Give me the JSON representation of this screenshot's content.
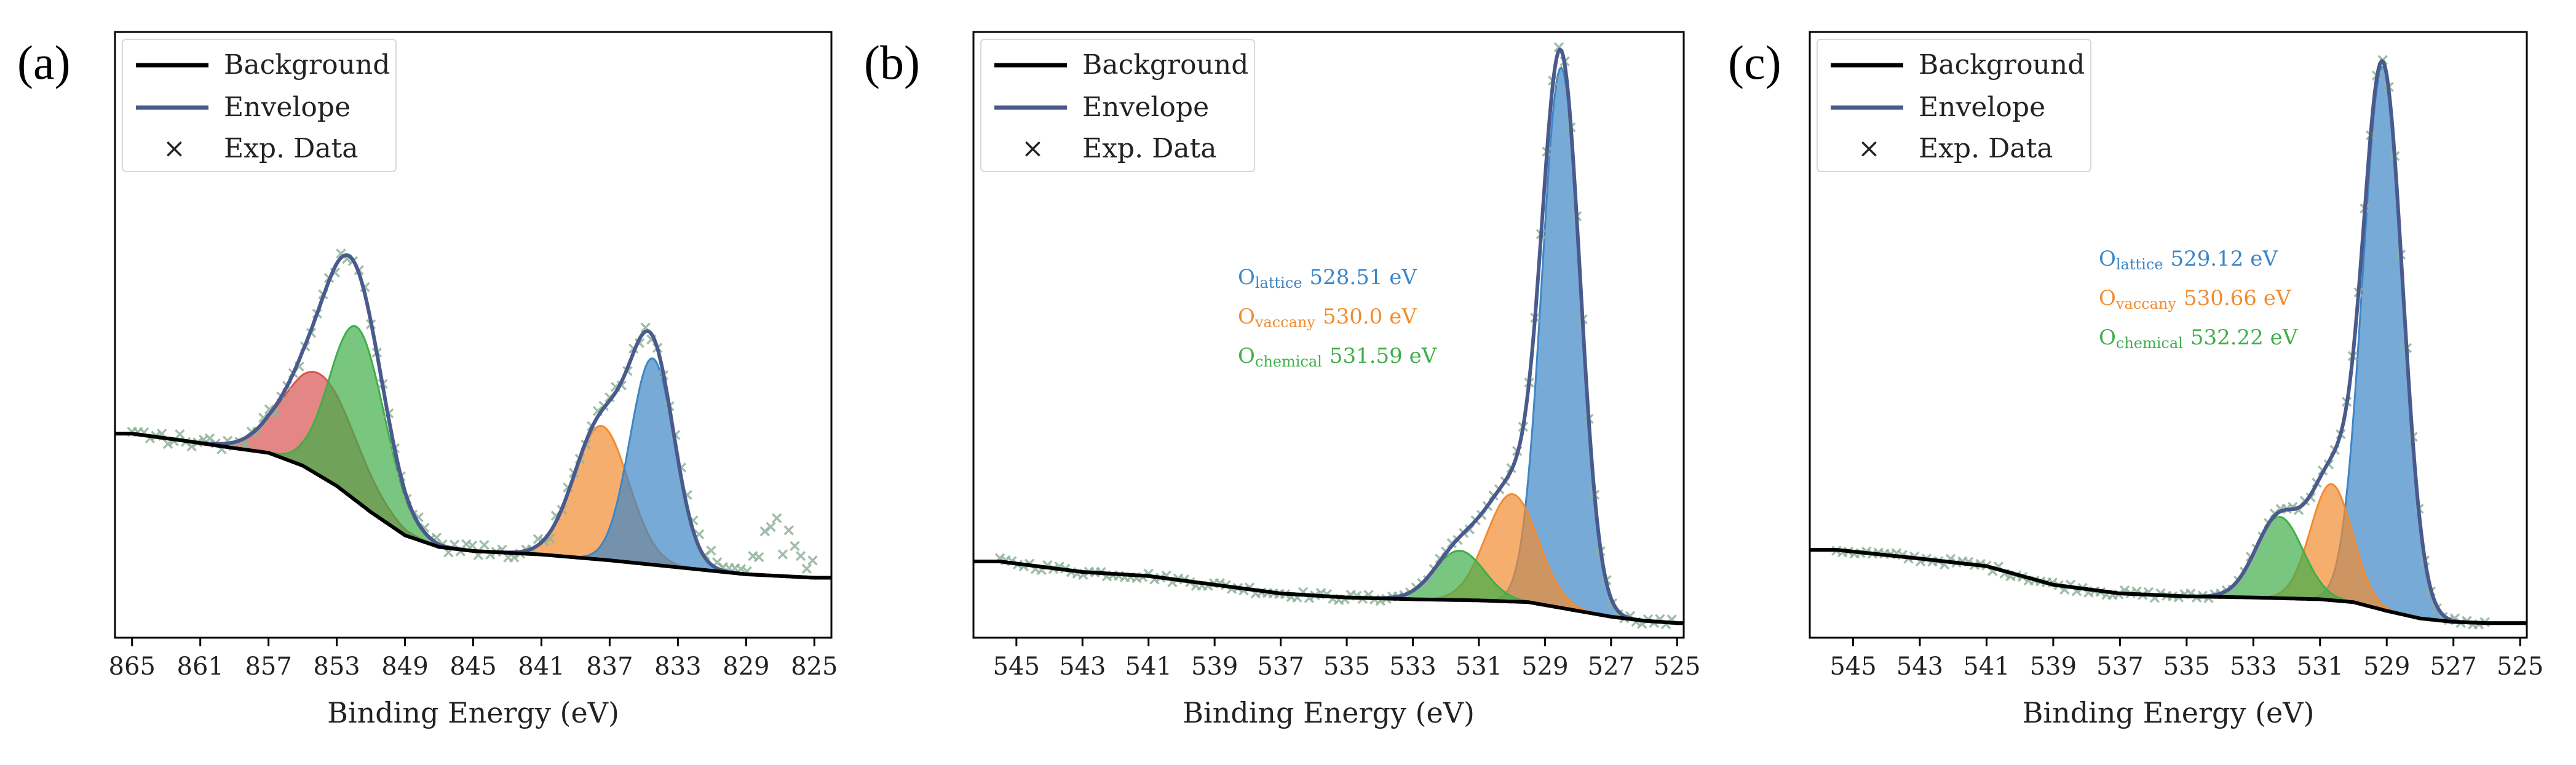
{
  "figure": {
    "panels": [
      "(a)",
      "(b)",
      "(c)"
    ]
  },
  "colors": {
    "background_line": "#000000",
    "envelope": "#4a5a8c",
    "exp_data": "#8fb39b",
    "blue": "#3d86c6",
    "orange": "#f28b30",
    "green": "#3fae49",
    "red": "#d9534f"
  },
  "chart_data": [
    {
      "panel": "(a)",
      "type": "line",
      "title": "",
      "xlabel": "Binding Energy (eV)",
      "ylabel": "",
      "xlim": [
        866,
        824
      ],
      "ylim": [
        0.0,
        1.0
      ],
      "xticks": [
        865,
        861,
        857,
        853,
        849,
        845,
        841,
        837,
        833,
        829,
        825
      ],
      "legend": {
        "position": "top-left",
        "entries": [
          "Background",
          "Envelope",
          "Exp. Data"
        ]
      },
      "background": {
        "points": [
          [
            865,
            0.33
          ],
          [
            862,
            0.318
          ],
          [
            859,
            0.305
          ],
          [
            857,
            0.297
          ],
          [
            855,
            0.275
          ],
          [
            853,
            0.24
          ],
          [
            851,
            0.195
          ],
          [
            849,
            0.155
          ],
          [
            847,
            0.135
          ],
          [
            845,
            0.128
          ],
          [
            841,
            0.122
          ],
          [
            837,
            0.112
          ],
          [
            833,
            0.1
          ],
          [
            829,
            0.088
          ],
          [
            825,
            0.082
          ]
        ]
      },
      "components": [
        {
          "color": "red",
          "center": 854.0,
          "height": 0.175,
          "width": 2.1
        },
        {
          "color": "green",
          "center": 851.8,
          "height": 0.3,
          "width": 1.6
        },
        {
          "color": "orange",
          "center": 837.5,
          "height": 0.23,
          "width": 1.6
        },
        {
          "color": "blue",
          "center": 834.5,
          "height": 0.355,
          "width": 1.3
        }
      ],
      "noise": [
        {
          "center": 827.0,
          "height": 0.065,
          "width": 1.2
        },
        {
          "center": 832.0,
          "height": 0.02,
          "width": 1.0
        }
      ],
      "exp_data": {
        "noise_amplitude": 0.012,
        "step": 0.35
      },
      "annotations": []
    },
    {
      "panel": "(b)",
      "type": "line",
      "title": "",
      "xlabel": "Binding Energy (eV)",
      "ylabel": "",
      "xlim": [
        546.3,
        524.8
      ],
      "ylim": [
        0.0,
        1.0
      ],
      "xticks": [
        545,
        543,
        541,
        539,
        537,
        535,
        533,
        531,
        529,
        527,
        525
      ],
      "legend": {
        "position": "top-left",
        "entries": [
          "Background",
          "Envelope",
          "Exp. Data"
        ]
      },
      "background": {
        "points": [
          [
            545.5,
            0.11
          ],
          [
            543,
            0.092
          ],
          [
            541,
            0.085
          ],
          [
            539,
            0.07
          ],
          [
            537,
            0.055
          ],
          [
            535,
            0.048
          ],
          [
            533,
            0.045
          ],
          [
            531,
            0.043
          ],
          [
            529.5,
            0.04
          ],
          [
            528.5,
            0.03
          ],
          [
            527,
            0.015
          ],
          [
            526,
            0.008
          ],
          [
            525,
            0.004
          ]
        ]
      },
      "components": [
        {
          "color": "blue",
          "center": 528.51,
          "height": 0.93,
          "width": 0.58
        },
        {
          "color": "orange",
          "center": 530.0,
          "height": 0.185,
          "width": 0.78
        },
        {
          "color": "green",
          "center": 531.59,
          "height": 0.085,
          "width": 0.75
        }
      ],
      "noise": [],
      "exp_data": {
        "noise_amplitude": 0.006,
        "step": 0.18
      },
      "annotations": [
        {
          "main": "O",
          "sub": "lattice",
          "value": "528.51 eV",
          "color": "blue"
        },
        {
          "main": "O",
          "sub": "vaccany",
          "value": "530.0 eV",
          "color": "orange"
        },
        {
          "main": "O",
          "sub": "chemical",
          "value": "531.59 eV",
          "color": "green"
        }
      ]
    },
    {
      "panel": "(c)",
      "type": "line",
      "title": "",
      "xlabel": "Binding Energy (eV)",
      "ylabel": "",
      "xlim": [
        546.3,
        524.8
      ],
      "ylim": [
        0.0,
        1.0
      ],
      "xticks": [
        545,
        543,
        541,
        539,
        537,
        535,
        533,
        531,
        529,
        527,
        525
      ],
      "legend": {
        "position": "top-left",
        "entries": [
          "Background",
          "Envelope",
          "Exp. Data"
        ]
      },
      "background": {
        "points": [
          [
            545.5,
            0.13
          ],
          [
            543,
            0.115
          ],
          [
            541,
            0.102
          ],
          [
            539,
            0.07
          ],
          [
            537,
            0.055
          ],
          [
            535,
            0.05
          ],
          [
            533,
            0.048
          ],
          [
            531,
            0.045
          ],
          [
            530,
            0.04
          ],
          [
            529,
            0.025
          ],
          [
            528,
            0.012
          ],
          [
            527,
            0.006
          ],
          [
            526,
            0.004
          ]
        ]
      },
      "components": [
        {
          "color": "blue",
          "center": 529.12,
          "height": 0.935,
          "width": 0.6
        },
        {
          "color": "orange",
          "center": 530.66,
          "height": 0.2,
          "width": 0.62
        },
        {
          "color": "green",
          "center": 532.22,
          "height": 0.14,
          "width": 0.7
        }
      ],
      "noise": [],
      "exp_data": {
        "noise_amplitude": 0.006,
        "step": 0.18
      },
      "annotations": [
        {
          "main": "O",
          "sub": "lattice",
          "value": "529.12 eV",
          "color": "blue"
        },
        {
          "main": "O",
          "sub": "vaccany",
          "value": "530.66 eV",
          "color": "orange"
        },
        {
          "main": "O",
          "sub": "chemical",
          "value": "532.22 eV",
          "color": "green"
        }
      ]
    }
  ]
}
